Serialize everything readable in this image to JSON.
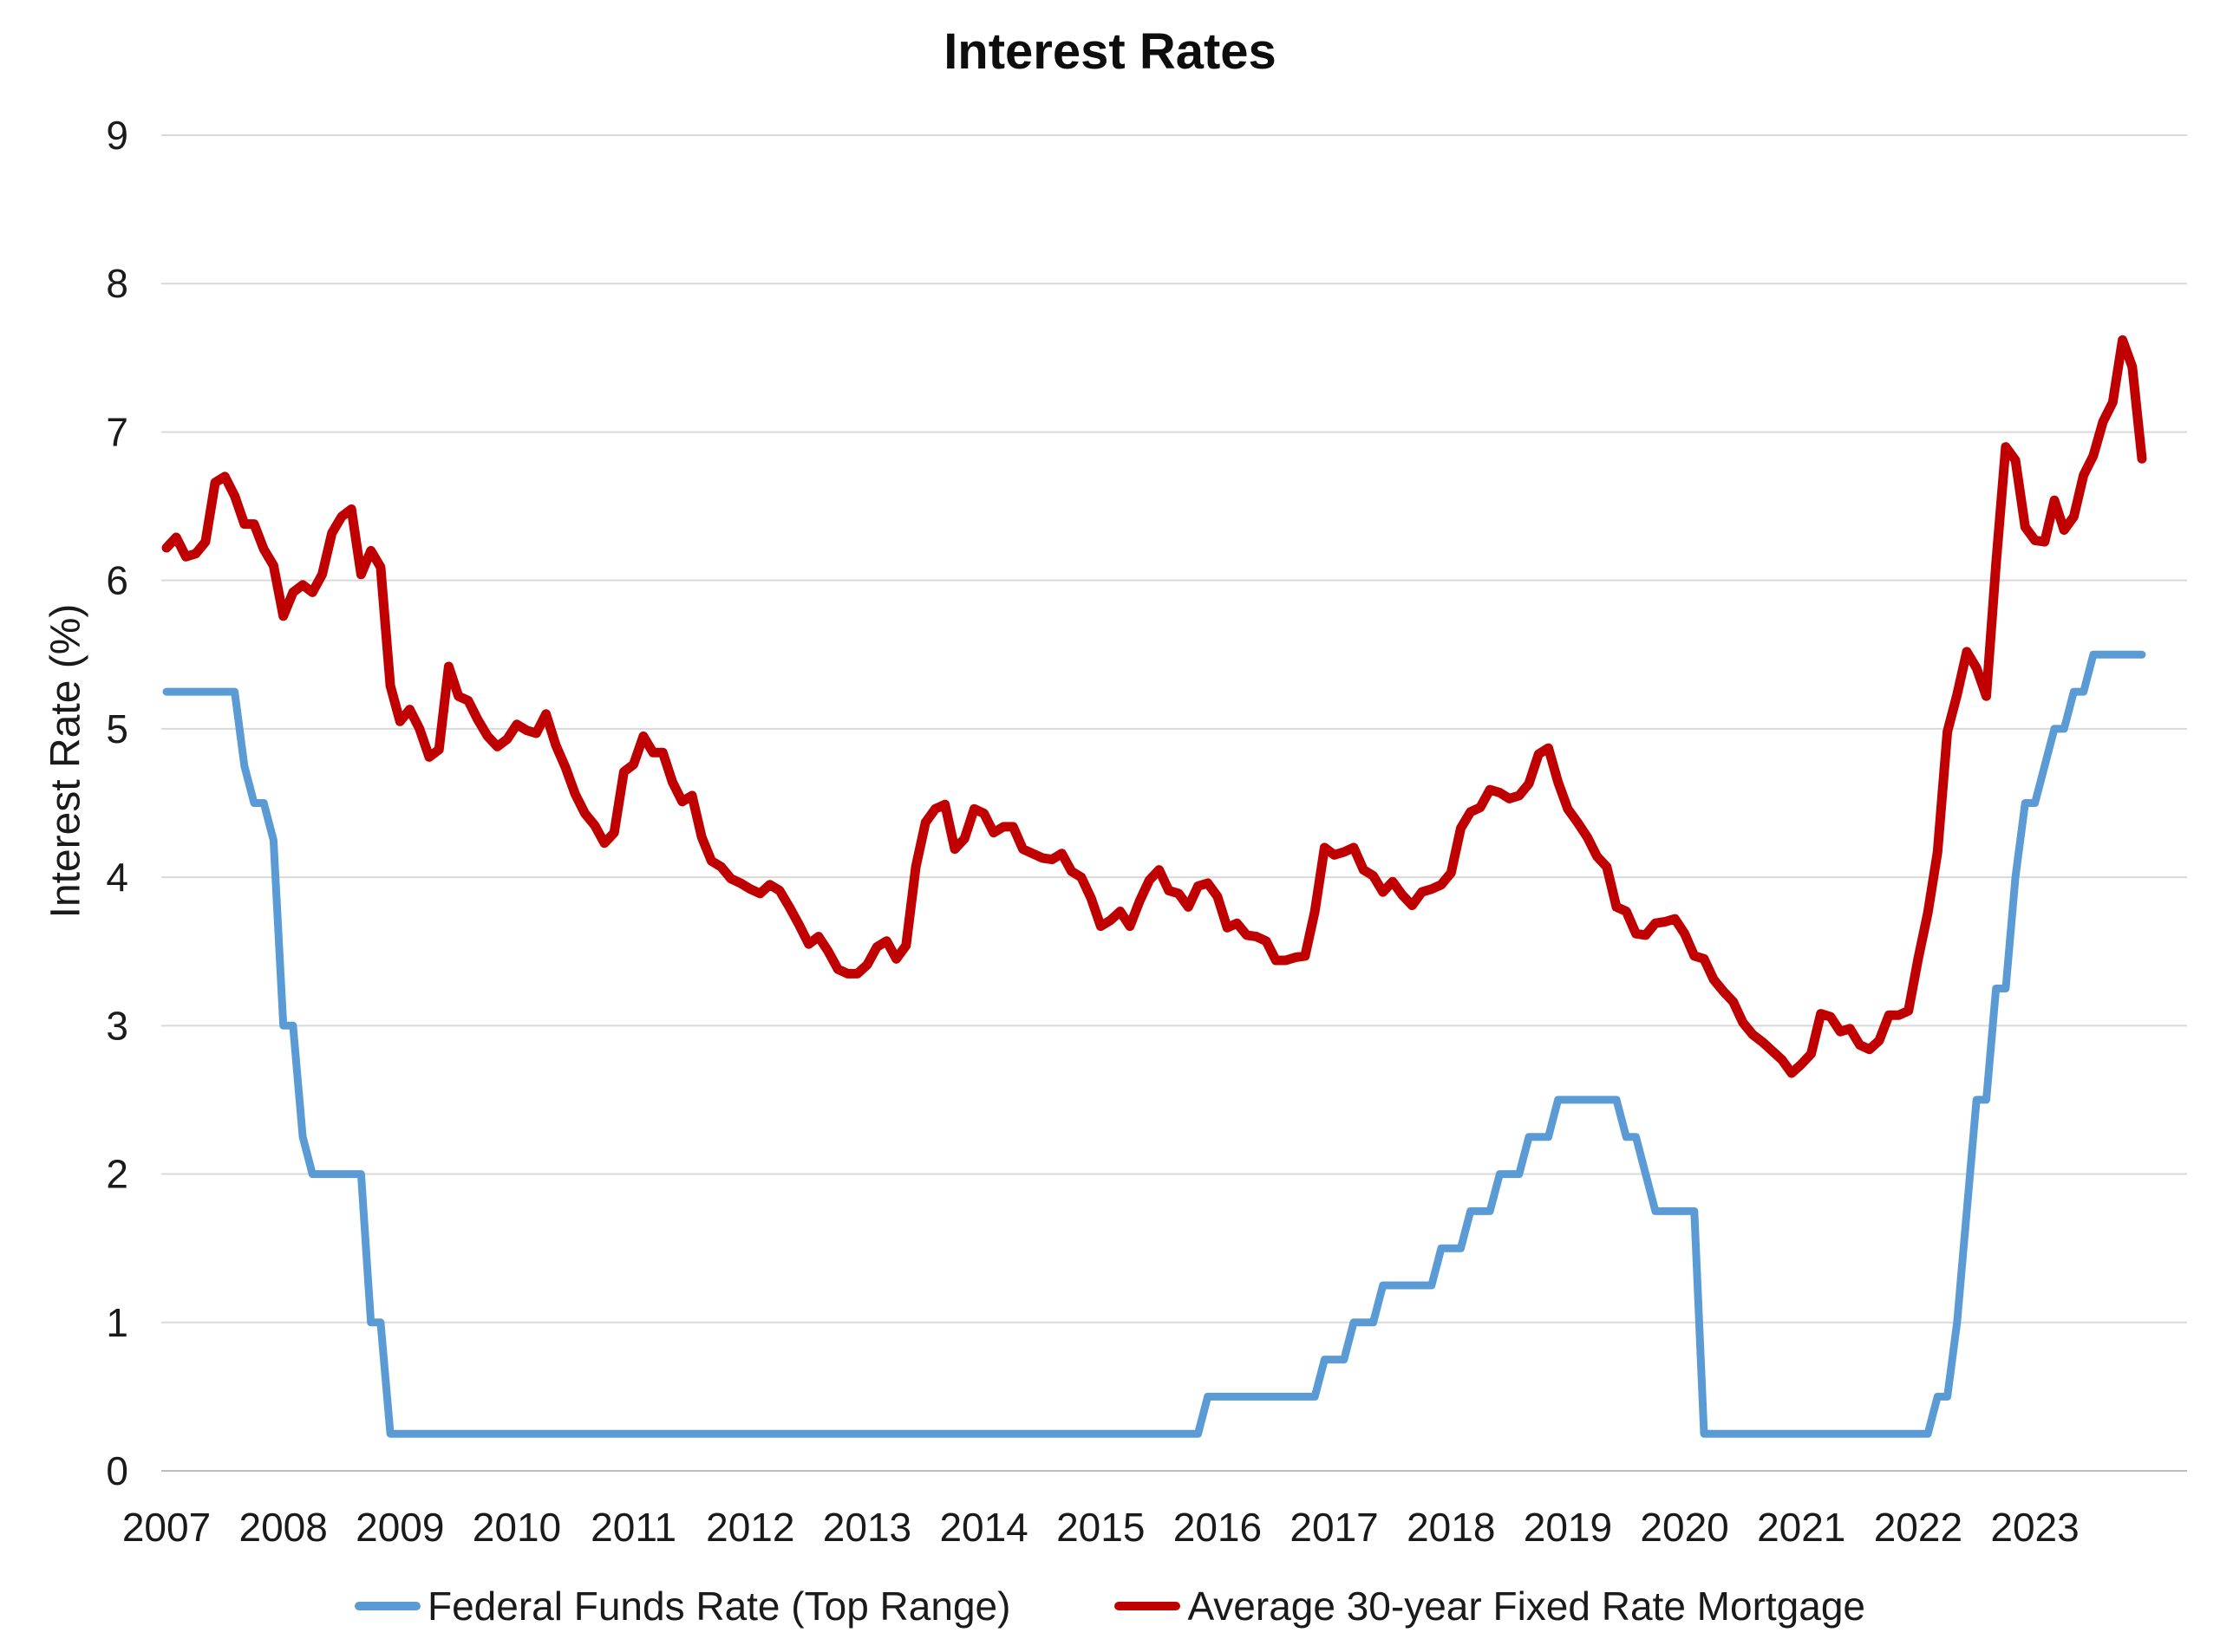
{
  "chart_data": {
    "type": "line",
    "title": "Interest Rates",
    "ylabel": "Interest Rate (%)",
    "xlabel": "",
    "ylim": [
      0,
      9
    ],
    "y_ticks": [
      0,
      1,
      2,
      3,
      4,
      5,
      6,
      7,
      8,
      9
    ],
    "grid": true,
    "gridline_color": "#D9D9D9",
    "axis_line_color": "#BFBFBF",
    "text_color": "#1a1a1a",
    "legend_position": "bottom",
    "x_tick_labels": [
      "2007",
      "2008",
      "2009",
      "2010",
      "2011",
      "2012",
      "2013",
      "2014",
      "2015",
      "2016",
      "2017",
      "2018",
      "2019",
      "2020",
      "2021",
      "2022",
      "2023"
    ],
    "months_per_tick": 12,
    "x_start": "Jan 2007",
    "x_end": "Dec 2023",
    "series": [
      {
        "name": "Federal Funds Rate (Top Range)",
        "color": "#5B9BD5",
        "stroke_width": 9,
        "monthly_values": [
          5.25,
          5.25,
          5.25,
          5.25,
          5.25,
          5.25,
          5.25,
          5.25,
          4.75,
          4.5,
          4.5,
          4.25,
          3.0,
          3.0,
          2.25,
          2.0,
          2.0,
          2.0,
          2.0,
          2.0,
          2.0,
          1.0,
          1.0,
          0.25,
          0.25,
          0.25,
          0.25,
          0.25,
          0.25,
          0.25,
          0.25,
          0.25,
          0.25,
          0.25,
          0.25,
          0.25,
          0.25,
          0.25,
          0.25,
          0.25,
          0.25,
          0.25,
          0.25,
          0.25,
          0.25,
          0.25,
          0.25,
          0.25,
          0.25,
          0.25,
          0.25,
          0.25,
          0.25,
          0.25,
          0.25,
          0.25,
          0.25,
          0.25,
          0.25,
          0.25,
          0.25,
          0.25,
          0.25,
          0.25,
          0.25,
          0.25,
          0.25,
          0.25,
          0.25,
          0.25,
          0.25,
          0.25,
          0.25,
          0.25,
          0.25,
          0.25,
          0.25,
          0.25,
          0.25,
          0.25,
          0.25,
          0.25,
          0.25,
          0.25,
          0.25,
          0.25,
          0.25,
          0.25,
          0.25,
          0.25,
          0.25,
          0.25,
          0.25,
          0.25,
          0.25,
          0.25,
          0.25,
          0.25,
          0.25,
          0.25,
          0.25,
          0.25,
          0.25,
          0.25,
          0.25,
          0.25,
          0.25,
          0.5,
          0.5,
          0.5,
          0.5,
          0.5,
          0.5,
          0.5,
          0.5,
          0.5,
          0.5,
          0.5,
          0.5,
          0.75,
          0.75,
          0.75,
          1.0,
          1.0,
          1.0,
          1.25,
          1.25,
          1.25,
          1.25,
          1.25,
          1.25,
          1.5,
          1.5,
          1.5,
          1.75,
          1.75,
          1.75,
          2.0,
          2.0,
          2.0,
          2.25,
          2.25,
          2.25,
          2.5,
          2.5,
          2.5,
          2.5,
          2.5,
          2.5,
          2.5,
          2.25,
          2.25,
          2.0,
          1.75,
          1.75,
          1.75,
          1.75,
          1.75,
          0.25,
          0.25,
          0.25,
          0.25,
          0.25,
          0.25,
          0.25,
          0.25,
          0.25,
          0.25,
          0.25,
          0.25,
          0.25,
          0.25,
          0.25,
          0.25,
          0.25,
          0.25,
          0.25,
          0.25,
          0.25,
          0.25,
          0.25,
          0.25,
          0.5,
          0.5,
          1.0,
          1.75,
          2.5,
          2.5,
          3.25,
          3.25,
          4.0,
          4.5,
          4.5,
          4.75,
          5.0,
          5.0,
          5.25,
          5.25,
          5.5,
          5.5,
          5.5,
          5.5,
          5.5,
          5.5
        ]
      },
      {
        "name": "Average 30-year Fixed Rate Mortgage",
        "color": "#C00000",
        "stroke_width": 11,
        "monthly_values": [
          6.22,
          6.29,
          6.16,
          6.18,
          6.26,
          6.66,
          6.7,
          6.57,
          6.38,
          6.38,
          6.21,
          6.1,
          5.76,
          5.92,
          5.97,
          5.92,
          6.04,
          6.32,
          6.43,
          6.48,
          6.04,
          6.2,
          6.09,
          5.29,
          5.05,
          5.13,
          5.0,
          4.81,
          4.86,
          5.42,
          5.22,
          5.19,
          5.06,
          4.95,
          4.88,
          4.93,
          5.03,
          4.99,
          4.97,
          5.1,
          4.89,
          4.74,
          4.56,
          4.43,
          4.35,
          4.23,
          4.3,
          4.71,
          4.76,
          4.95,
          4.84,
          4.84,
          4.64,
          4.51,
          4.55,
          4.27,
          4.11,
          4.07,
          3.99,
          3.96,
          3.92,
          3.89,
          3.95,
          3.91,
          3.8,
          3.68,
          3.55,
          3.6,
          3.5,
          3.38,
          3.35,
          3.35,
          3.41,
          3.53,
          3.57,
          3.45,
          3.54,
          4.07,
          4.37,
          4.46,
          4.49,
          4.19,
          4.26,
          4.46,
          4.43,
          4.3,
          4.34,
          4.34,
          4.19,
          4.16,
          4.13,
          4.12,
          4.16,
          4.04,
          4.0,
          3.86,
          3.67,
          3.71,
          3.77,
          3.67,
          3.84,
          3.98,
          4.05,
          3.91,
          3.89,
          3.8,
          3.94,
          3.96,
          3.87,
          3.66,
          3.69,
          3.61,
          3.6,
          3.57,
          3.44,
          3.44,
          3.46,
          3.47,
          3.77,
          4.2,
          4.15,
          4.17,
          4.2,
          4.05,
          4.01,
          3.9,
          3.97,
          3.88,
          3.81,
          3.9,
          3.92,
          3.95,
          4.03,
          4.33,
          4.44,
          4.47,
          4.59,
          4.57,
          4.53,
          4.55,
          4.63,
          4.83,
          4.87,
          4.64,
          4.46,
          4.37,
          4.27,
          4.14,
          4.07,
          3.8,
          3.77,
          3.62,
          3.61,
          3.69,
          3.7,
          3.72,
          3.62,
          3.47,
          3.45,
          3.31,
          3.23,
          3.16,
          3.02,
          2.94,
          2.89,
          2.83,
          2.77,
          2.68,
          2.74,
          2.81,
          3.08,
          3.06,
          2.96,
          2.98,
          2.87,
          2.84,
          2.9,
          3.07,
          3.07,
          3.1,
          3.45,
          3.76,
          4.17,
          4.98,
          5.23,
          5.52,
          5.41,
          5.22,
          6.11,
          6.9,
          6.81,
          6.36,
          6.27,
          6.26,
          6.54,
          6.34,
          6.43,
          6.71,
          6.84,
          7.07,
          7.2,
          7.62,
          7.44,
          6.82
        ]
      }
    ]
  }
}
